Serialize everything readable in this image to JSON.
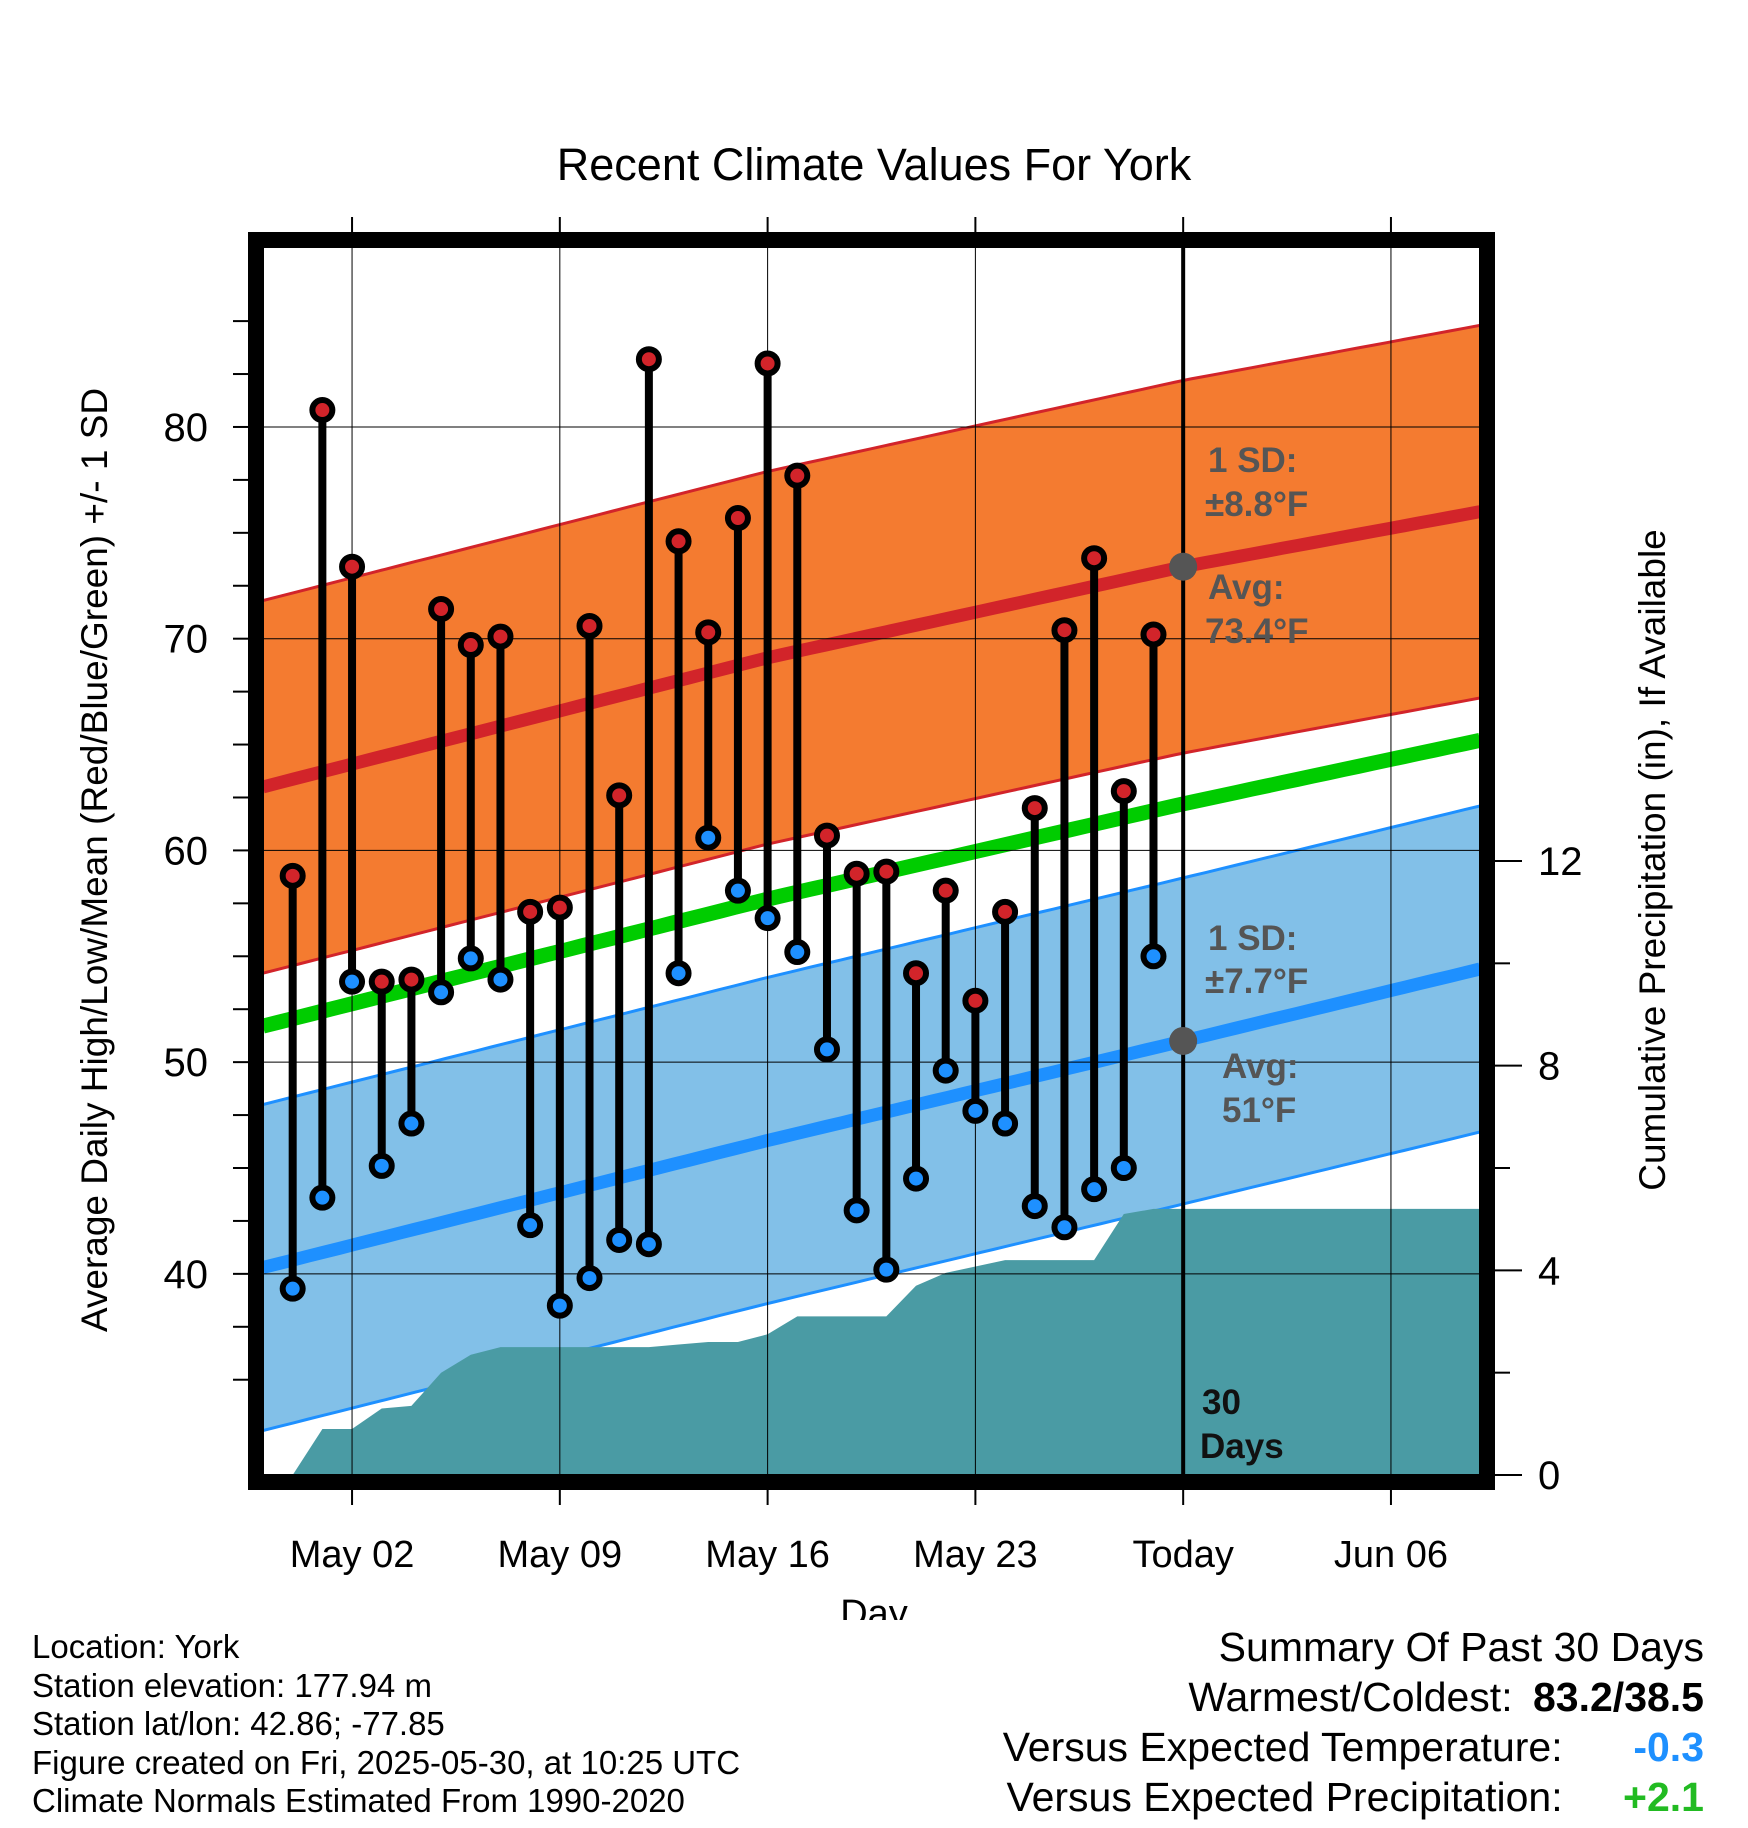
{
  "chart_data": {
    "type": "line",
    "title": "Recent Climate Values For York",
    "xlabel": "Day",
    "ylabel": "Average Daily High/Low/Mean (Red/Blue/Green) +/- 1 SD",
    "y2label": "Cumulative Precipitation (in), If Available",
    "x_start": "2025-04-29",
    "x_end": "2025-06-09",
    "today": "2025-05-30",
    "ylim": [
      30.5,
      88.5
    ],
    "y2lim": [
      0,
      24
    ],
    "grid": true,
    "x_ticks": [
      {
        "date": "2025-05-02",
        "label": "May 02"
      },
      {
        "date": "2025-05-09",
        "label": "May 09"
      },
      {
        "date": "2025-05-16",
        "label": "May 16"
      },
      {
        "date": "2025-05-23",
        "label": "May 23"
      },
      {
        "date": "2025-05-30",
        "label": "Today"
      },
      {
        "date": "2025-06-06",
        "label": "Jun 06"
      }
    ],
    "y_ticks": [
      40,
      50,
      60,
      70,
      80
    ],
    "y2_ticks": [
      0,
      4,
      8,
      12
    ],
    "daily": [
      {
        "date": "2025-04-30",
        "high": 58.8,
        "low": 39.3
      },
      {
        "date": "2025-05-01",
        "high": 80.8,
        "low": 43.6
      },
      {
        "date": "2025-05-02",
        "high": 73.4,
        "low": 53.8
      },
      {
        "date": "2025-05-03",
        "high": 53.8,
        "low": 45.1
      },
      {
        "date": "2025-05-04",
        "high": 53.9,
        "low": 47.1
      },
      {
        "date": "2025-05-05",
        "high": 71.4,
        "low": 53.3
      },
      {
        "date": "2025-05-06",
        "high": 69.7,
        "low": 54.9
      },
      {
        "date": "2025-05-07",
        "high": 70.1,
        "low": 53.9
      },
      {
        "date": "2025-05-08",
        "high": 57.1,
        "low": 42.3
      },
      {
        "date": "2025-05-09",
        "high": 57.3,
        "low": 38.5
      },
      {
        "date": "2025-05-10",
        "high": 70.6,
        "low": 39.8
      },
      {
        "date": "2025-05-11",
        "high": 62.6,
        "low": 41.6
      },
      {
        "date": "2025-05-12",
        "high": 83.2,
        "low": 41.4
      },
      {
        "date": "2025-05-13",
        "high": 74.6,
        "low": 54.2
      },
      {
        "date": "2025-05-14",
        "high": 70.3,
        "low": 60.6
      },
      {
        "date": "2025-05-15",
        "high": 75.7,
        "low": 58.1
      },
      {
        "date": "2025-05-16",
        "high": 83.0,
        "low": 56.8
      },
      {
        "date": "2025-05-17",
        "high": 77.7,
        "low": 55.2
      },
      {
        "date": "2025-05-18",
        "high": 60.7,
        "low": 50.6
      },
      {
        "date": "2025-05-19",
        "high": 58.9,
        "low": 43.0
      },
      {
        "date": "2025-05-20",
        "high": 59.0,
        "low": 40.2
      },
      {
        "date": "2025-05-21",
        "high": 54.2,
        "low": 44.5
      },
      {
        "date": "2025-05-22",
        "high": 58.1,
        "low": 49.6
      },
      {
        "date": "2025-05-23",
        "high": 52.9,
        "low": 47.7
      },
      {
        "date": "2025-05-24",
        "high": 57.1,
        "low": 47.1
      },
      {
        "date": "2025-05-25",
        "high": 62.0,
        "low": 43.2
      },
      {
        "date": "2025-05-26",
        "high": 70.4,
        "low": 42.2
      },
      {
        "date": "2025-05-27",
        "high": 73.8,
        "low": 44.0
      },
      {
        "date": "2025-05-28",
        "high": 62.8,
        "low": 45.0
      },
      {
        "date": "2025-05-29",
        "high": 70.2,
        "low": 55.0
      }
    ],
    "normals": {
      "dates": [
        "2025-04-29",
        "2025-05-16",
        "2025-05-30",
        "2025-06-09"
      ],
      "high_avg": [
        63.0,
        69.1,
        73.4,
        76.0
      ],
      "high_sd": [
        8.8,
        8.8,
        8.8,
        8.8
      ],
      "low_avg": [
        40.3,
        46.3,
        51.0,
        54.4
      ],
      "low_sd": [
        7.7,
        7.7,
        7.7,
        7.7
      ],
      "mean_avg": [
        51.7,
        57.7,
        62.2,
        65.2
      ]
    },
    "precip_cumulative": {
      "dates": [
        "2025-04-30",
        "2025-05-01",
        "2025-05-02",
        "2025-05-03",
        "2025-05-04",
        "2025-05-05",
        "2025-05-06",
        "2025-05-07",
        "2025-05-08",
        "2025-05-12",
        "2025-05-13",
        "2025-05-14",
        "2025-05-15",
        "2025-05-16",
        "2025-05-17",
        "2025-05-19",
        "2025-05-20",
        "2025-05-21",
        "2025-05-22",
        "2025-05-24",
        "2025-05-27",
        "2025-05-28",
        "2025-05-29",
        "2025-05-30",
        "2025-06-09"
      ],
      "values": [
        0,
        0.9,
        0.9,
        1.3,
        1.35,
        2.0,
        2.35,
        2.5,
        2.5,
        2.5,
        2.55,
        2.6,
        2.6,
        2.75,
        3.1,
        3.1,
        3.1,
        3.7,
        3.95,
        4.2,
        4.2,
        5.1,
        5.2,
        5.2,
        5.2
      ]
    },
    "annotations": {
      "high_sd_label": "1 SD:",
      "high_sd_value": "±8.8°F",
      "high_avg_label": "Avg:",
      "high_avg_value": "73.4°F",
      "low_sd_label": "1 SD:",
      "low_sd_value": "±7.7°F",
      "low_avg_label": "Avg:",
      "low_avg_value": "51°F",
      "days_value": "30",
      "days_label": "Days"
    },
    "colors": {
      "high_band": "#f47b30",
      "high_line": "#d2242a",
      "low_band": "#82c0e8",
      "low_line": "#1e90ff",
      "mean_line": "#00cc00",
      "precip": "#4a9ba4",
      "high_point": "#d2242a",
      "low_point": "#1e90ff"
    }
  },
  "footer": {
    "location": "Location: York",
    "elevation": "Station elevation: 177.94 m",
    "latlon": "Station lat/lon: 42.86; -77.85",
    "created": "Figure created on Fri, 2025-05-30, at 10:25 UTC",
    "normals": "Climate Normals Estimated From 1990-2020"
  },
  "summary": {
    "title": "Summary Of Past 30 Days",
    "warm_cold_label": "Warmest/Coldest:",
    "warm_cold_value": "83.2/38.5",
    "temp_label": "Versus Expected Temperature:",
    "temp_value": "-0.3",
    "temp_color": "#1e90ff",
    "precip_label": "Versus Expected Precipitation:",
    "precip_value": "+2.1",
    "precip_color": "#22bb22"
  }
}
